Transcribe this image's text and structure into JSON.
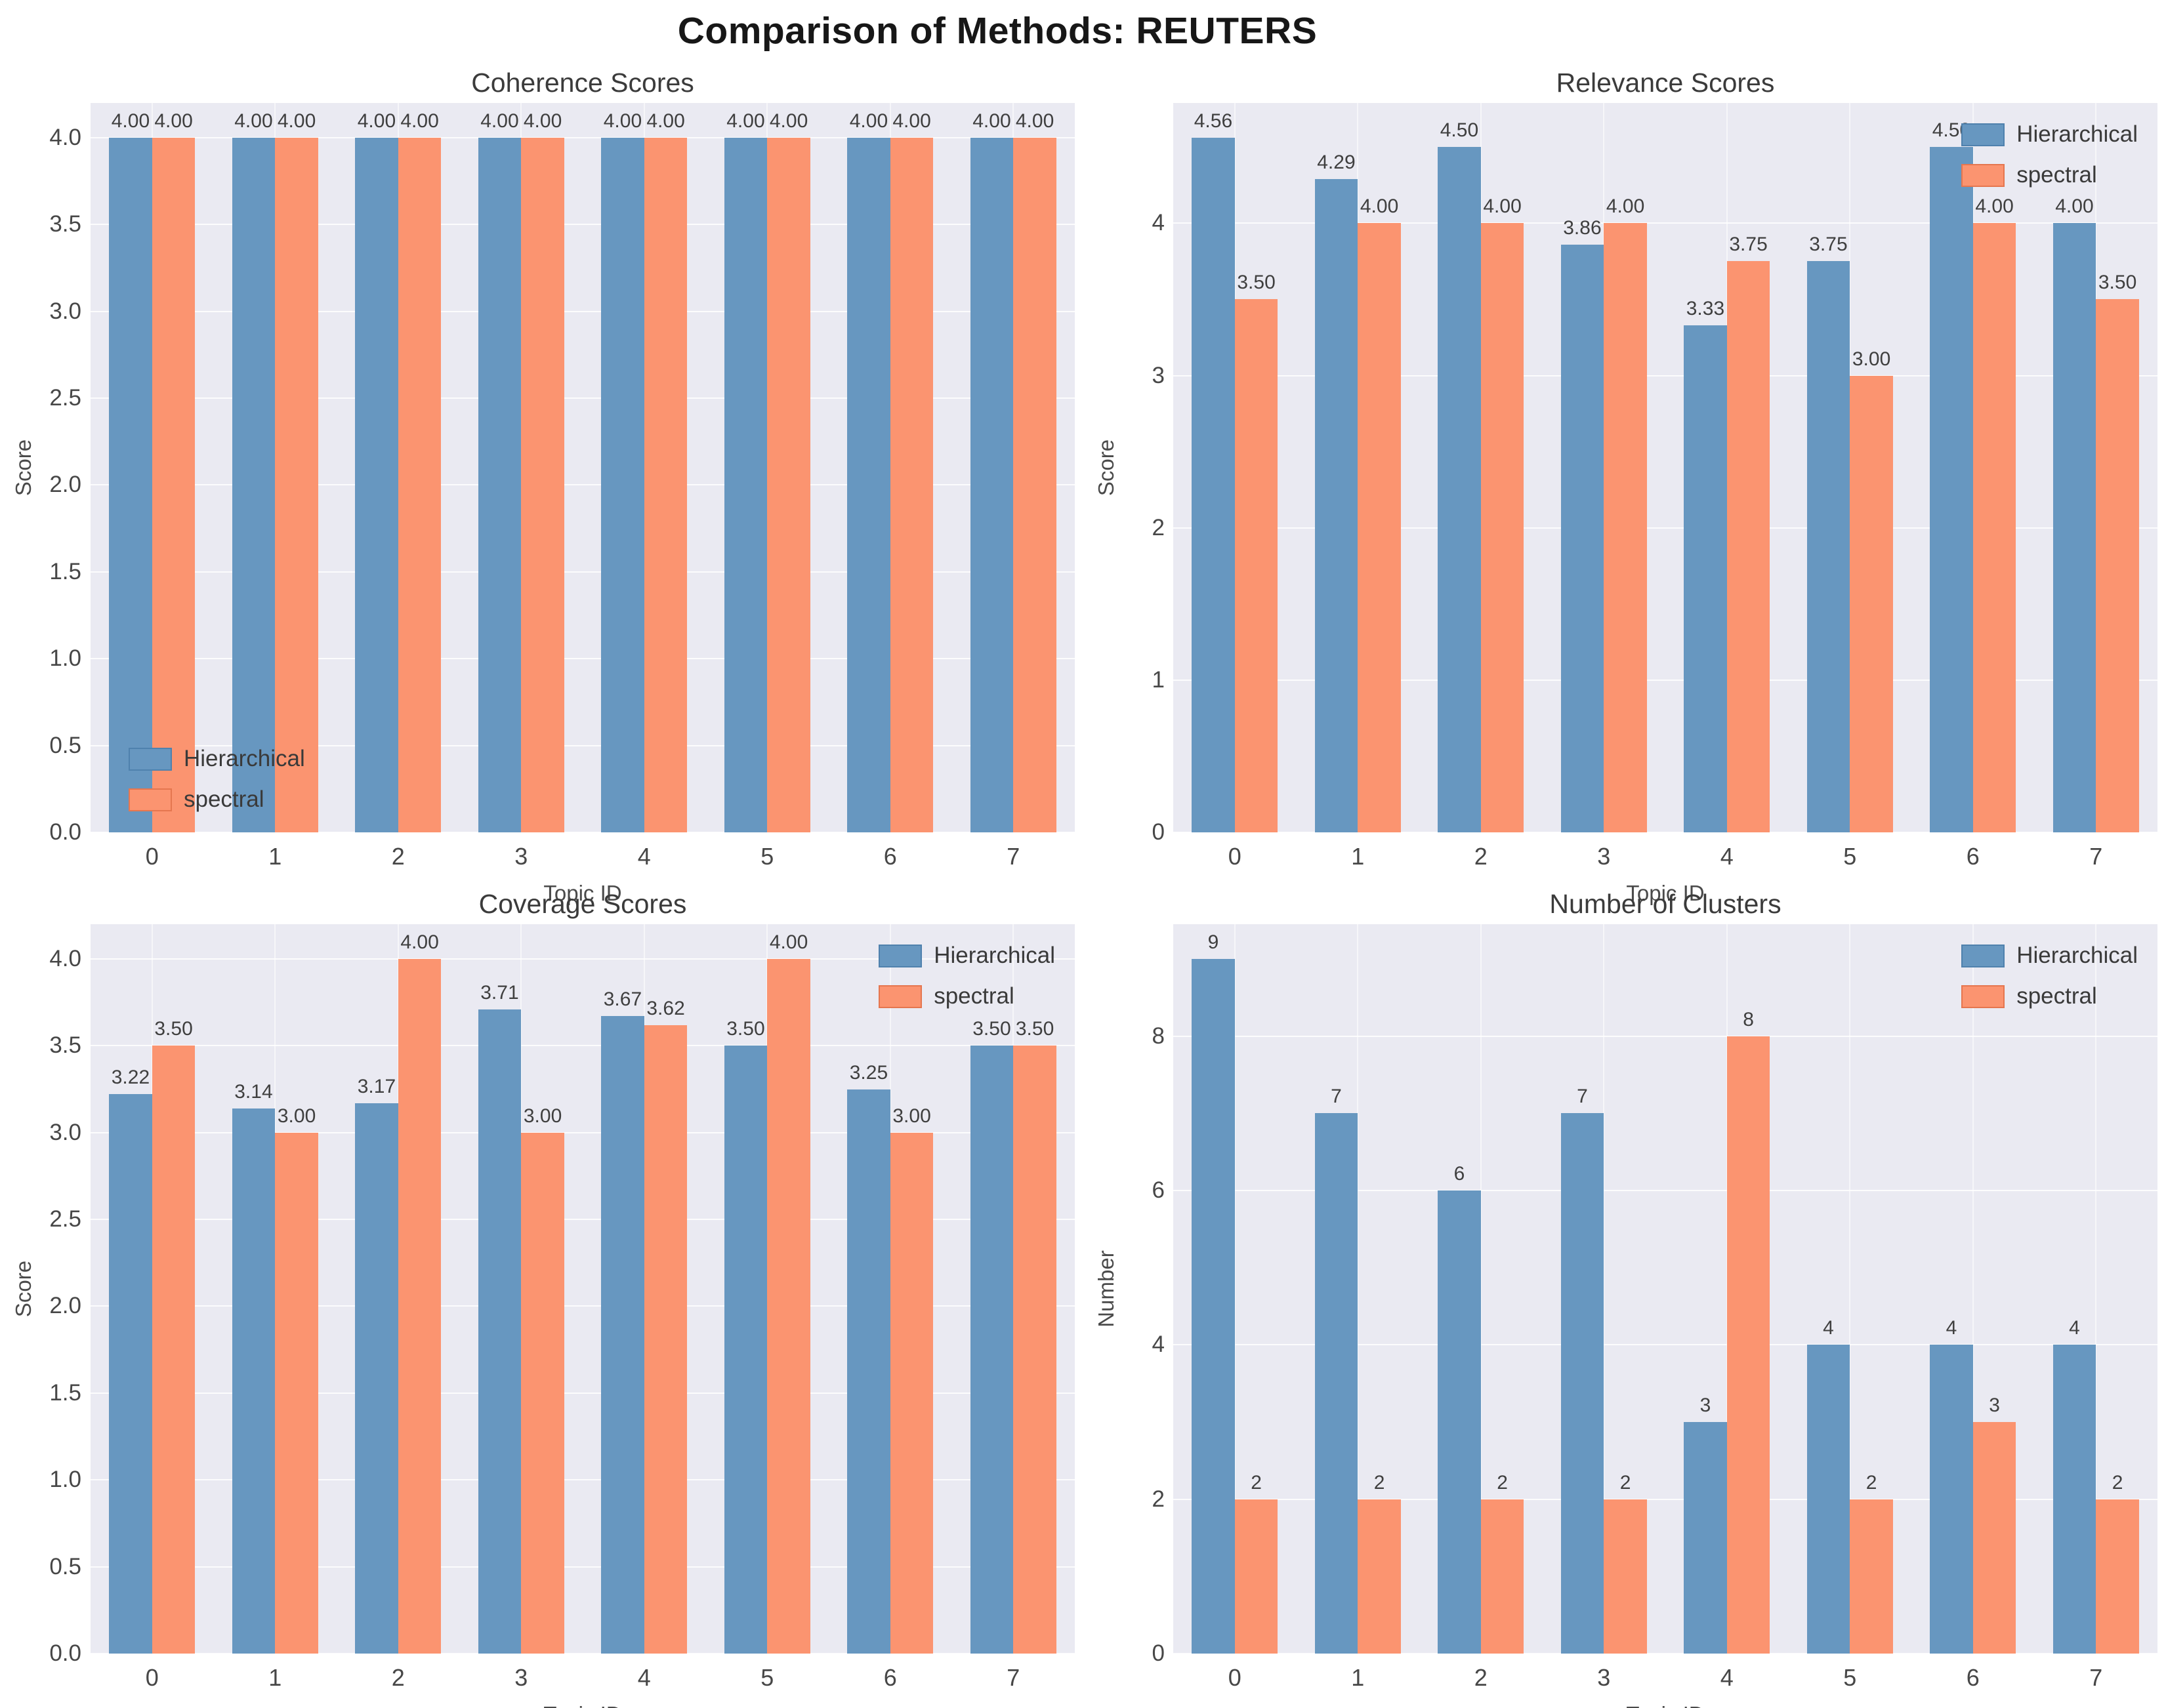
{
  "title": "Comparison of Methods: REUTERS",
  "legend": {
    "series1": "Hierarchical",
    "series2": "spectral"
  },
  "colors": {
    "hierarchical": "#6797c0",
    "spectral": "#fb9470",
    "hierarchical_edge": "#4f81ad",
    "spectral_edge": "#e5764f",
    "plot_background": "#eaeaf2",
    "gridline": "#ffffff"
  },
  "chart_data": [
    {
      "type": "bar",
      "title": "Coherence Scores",
      "xlabel": "Topic ID",
      "ylabel": "Score",
      "categories": [
        "0",
        "1",
        "2",
        "3",
        "4",
        "5",
        "6",
        "7"
      ],
      "series": [
        {
          "name": "Hierarchical",
          "values": [
            4.0,
            4.0,
            4.0,
            4.0,
            4.0,
            4.0,
            4.0,
            4.0
          ],
          "labels": [
            "4.00",
            "4.00",
            "4.00",
            "4.00",
            "4.00",
            "4.00",
            "4.00",
            "4.00"
          ]
        },
        {
          "name": "spectral",
          "values": [
            4.0,
            4.0,
            4.0,
            4.0,
            4.0,
            4.0,
            4.0,
            4.0
          ],
          "labels": [
            "4.00",
            "4.00",
            "4.00",
            "4.00",
            "4.00",
            "4.00",
            "4.00",
            "4.00"
          ]
        }
      ],
      "ylim": [
        0,
        4.2
      ],
      "yticks": {
        "values": [
          0,
          0.5,
          1,
          1.5,
          2,
          2.5,
          3,
          3.5,
          4
        ],
        "labels": [
          "0.0",
          "0.5",
          "1.0",
          "1.5",
          "2.0",
          "2.5",
          "3.0",
          "3.5",
          "4.0"
        ]
      },
      "grid": true,
      "legend_position": "lower-left"
    },
    {
      "type": "bar",
      "title": "Relevance Scores",
      "xlabel": "Topic ID",
      "ylabel": "Score",
      "categories": [
        "0",
        "1",
        "2",
        "3",
        "4",
        "5",
        "6",
        "7"
      ],
      "series": [
        {
          "name": "Hierarchical",
          "values": [
            4.56,
            4.29,
            4.5,
            3.86,
            3.33,
            3.75,
            4.5,
            4.0
          ],
          "labels": [
            "4.56",
            "4.29",
            "4.50",
            "3.86",
            "3.33",
            "3.75",
            "4.50",
            "4.00"
          ]
        },
        {
          "name": "spectral",
          "values": [
            3.5,
            4.0,
            4.0,
            4.0,
            3.75,
            3.0,
            4.0,
            3.5
          ],
          "labels": [
            "3.50",
            "4.00",
            "4.00",
            "4.00",
            "3.75",
            "3.00",
            "4.00",
            "3.50"
          ]
        }
      ],
      "ylim": [
        0,
        4.79
      ],
      "yticks": {
        "values": [
          0,
          1,
          2,
          3,
          4
        ],
        "labels": [
          "0",
          "1",
          "2",
          "3",
          "4"
        ]
      },
      "grid": true,
      "legend_position": "top-right"
    },
    {
      "type": "bar",
      "title": "Coverage Scores",
      "xlabel": "Topic ID",
      "ylabel": "Score",
      "categories": [
        "0",
        "1",
        "2",
        "3",
        "4",
        "5",
        "6",
        "7"
      ],
      "series": [
        {
          "name": "Hierarchical",
          "values": [
            3.22,
            3.14,
            3.17,
            3.71,
            3.67,
            3.5,
            3.25,
            3.5
          ],
          "labels": [
            "3.22",
            "3.14",
            "3.17",
            "3.71",
            "3.67",
            "3.50",
            "3.25",
            "3.50"
          ]
        },
        {
          "name": "spectral",
          "values": [
            3.5,
            3.0,
            4.0,
            3.0,
            3.62,
            4.0,
            3.0,
            3.5
          ],
          "labels": [
            "3.50",
            "3.00",
            "4.00",
            "3.00",
            "3.62",
            "4.00",
            "3.00",
            "3.50"
          ]
        }
      ],
      "ylim": [
        0,
        4.2
      ],
      "yticks": {
        "values": [
          0,
          0.5,
          1,
          1.5,
          2,
          2.5,
          3,
          3.5,
          4
        ],
        "labels": [
          "0.0",
          "0.5",
          "1.0",
          "1.5",
          "2.0",
          "2.5",
          "3.0",
          "3.5",
          "4.0"
        ]
      },
      "grid": true,
      "legend_position": "top-right"
    },
    {
      "type": "bar",
      "title": "Number of Clusters",
      "xlabel": "Topic ID",
      "ylabel": "Number",
      "categories": [
        "0",
        "1",
        "2",
        "3",
        "4",
        "5",
        "6",
        "7"
      ],
      "series": [
        {
          "name": "Hierarchical",
          "values": [
            9,
            7,
            6,
            7,
            3,
            4,
            4,
            4
          ],
          "labels": [
            "9",
            "7",
            "6",
            "7",
            "3",
            "4",
            "4",
            "4"
          ]
        },
        {
          "name": "spectral",
          "values": [
            2,
            2,
            2,
            2,
            8,
            2,
            3,
            2
          ],
          "labels": [
            "2",
            "2",
            "2",
            "2",
            "8",
            "2",
            "3",
            "2"
          ]
        }
      ],
      "ylim": [
        0,
        9.45
      ],
      "yticks": {
        "values": [
          0,
          2,
          4,
          6,
          8
        ],
        "labels": [
          "0",
          "2",
          "4",
          "6",
          "8"
        ]
      },
      "grid": true,
      "legend_position": "top-right"
    }
  ]
}
